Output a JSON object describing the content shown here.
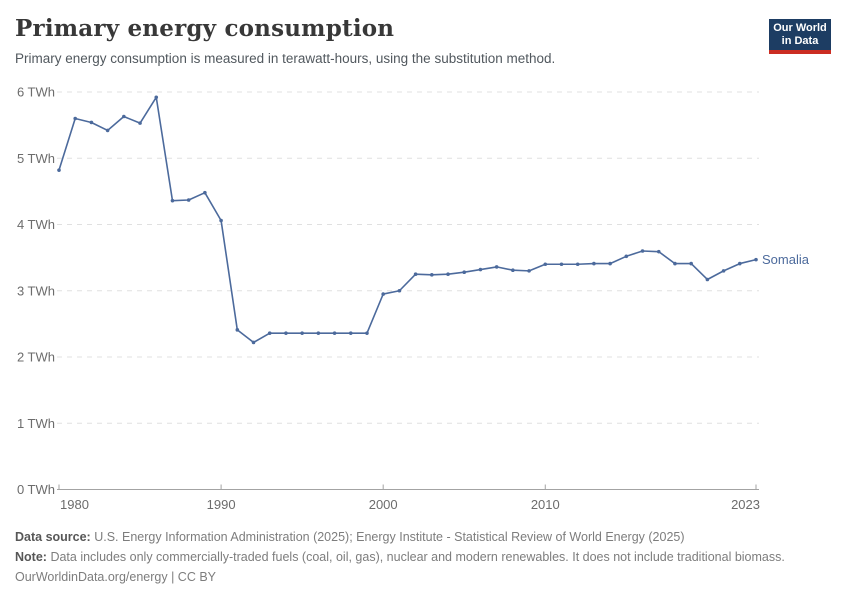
{
  "header": {
    "title": "Primary energy consumption",
    "subtitle": "Primary energy consumption is measured in terawatt-hours, using the substitution method.",
    "logo": {
      "line1": "Our World",
      "line2": "in Data",
      "bg_color": "#1d3d63",
      "accent_color": "#cb2d22"
    }
  },
  "chart_data": {
    "type": "line",
    "title": "Primary energy consumption",
    "unit": "TWh",
    "x": [
      1980,
      1981,
      1982,
      1983,
      1984,
      1985,
      1986,
      1987,
      1988,
      1989,
      1990,
      1991,
      1992,
      1993,
      1994,
      1995,
      1996,
      1997,
      1998,
      1999,
      2000,
      2001,
      2002,
      2003,
      2004,
      2005,
      2006,
      2007,
      2008,
      2009,
      2010,
      2011,
      2012,
      2013,
      2014,
      2015,
      2016,
      2017,
      2018,
      2019,
      2020,
      2021,
      2022,
      2023
    ],
    "series": [
      {
        "name": "Somalia",
        "color": "#4C6A9C",
        "values": [
          4.82,
          5.6,
          5.54,
          5.42,
          5.63,
          5.53,
          5.92,
          4.36,
          4.37,
          4.48,
          4.06,
          2.41,
          2.22,
          2.36,
          2.36,
          2.36,
          2.36,
          2.36,
          2.36,
          2.36,
          2.95,
          3.0,
          3.25,
          3.24,
          3.25,
          3.28,
          3.32,
          3.36,
          3.31,
          3.3,
          3.4,
          3.4,
          3.4,
          3.41,
          3.41,
          3.52,
          3.6,
          3.59,
          3.41,
          3.41,
          3.17,
          3.3,
          3.41,
          3.47
        ]
      }
    ],
    "xlim": [
      1980,
      2023
    ],
    "ylim": [
      0,
      6
    ],
    "x_ticks": [
      1980,
      1990,
      2000,
      2010,
      2023
    ],
    "y_ticks": [
      0,
      1,
      2,
      3,
      4,
      5,
      6
    ],
    "y_tick_suffix": " TWh",
    "grid": "horizontal-dashed",
    "legend": "series-end-label",
    "colors": {
      "grid": "#e0e0e0",
      "axis": "#a3a3a3",
      "tick_label": "#6c6c6c"
    }
  },
  "footer": {
    "data_source_label": "Data source:",
    "data_source": "U.S. Energy Information Administration (2025); Energy Institute - Statistical Review of World Energy (2025)",
    "note_label": "Note:",
    "note": "Data includes only commercially-traded fuels (coal, oil, gas), nuclear and modern renewables. It does not include traditional biomass.",
    "link": "OurWorldinData.org/energy | CC BY"
  }
}
